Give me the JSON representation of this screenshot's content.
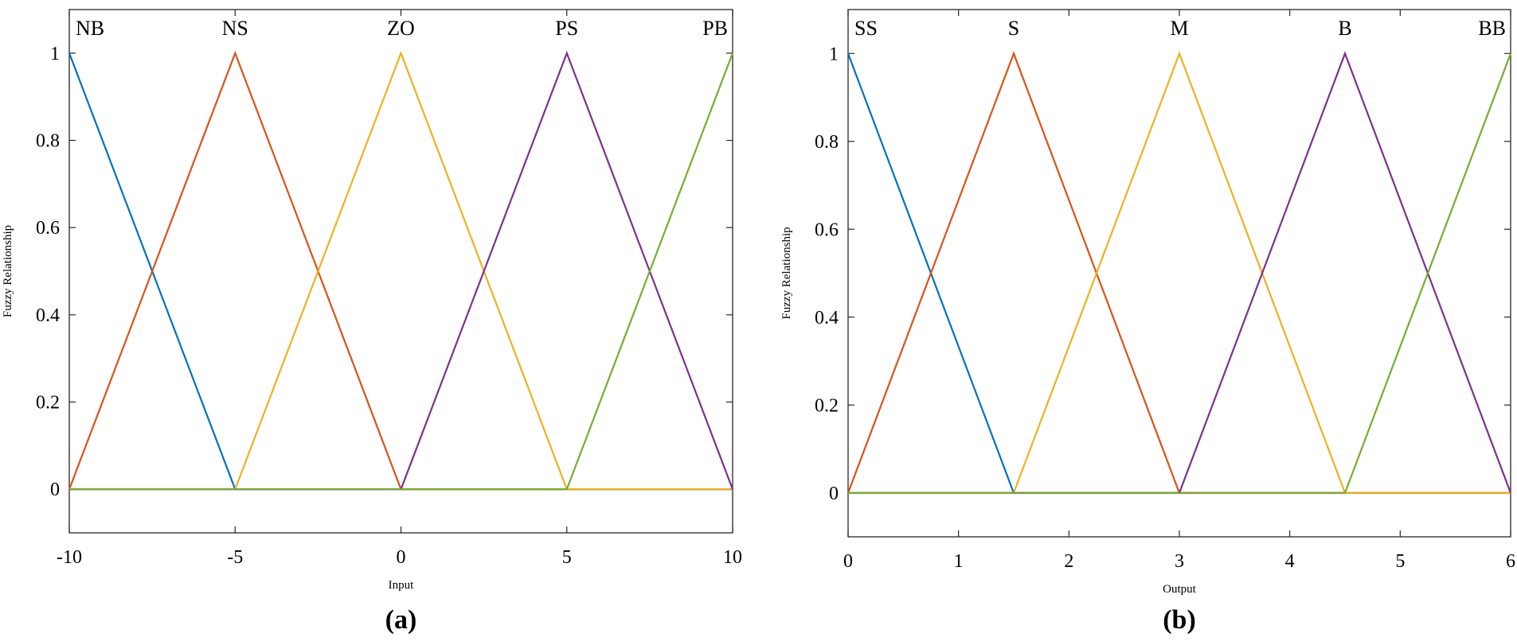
{
  "colors": [
    "#0072BD",
    "#D95319",
    "#EDB120",
    "#7E2F8E",
    "#77AC30"
  ],
  "chart_data": [
    {
      "type": "line",
      "panel_label": "(a)",
      "xlabel": "Input",
      "ylabel": "Fuzzy Relationship",
      "xlim": [
        -10,
        10
      ],
      "ylim": [
        -0.1,
        1.1
      ],
      "xticks": [
        -10,
        -5,
        0,
        5,
        10
      ],
      "yticks": [
        0,
        0.2,
        0.4,
        0.6,
        0.8,
        1
      ],
      "xtick_labels": [
        "-10",
        "-5",
        "0",
        "5",
        "10"
      ],
      "ytick_labels": [
        "0",
        "0.2",
        "0.4",
        "0.6",
        "0.8",
        "1"
      ],
      "grid": false,
      "series": [
        {
          "name": "NB",
          "x": [
            -10,
            -5,
            10
          ],
          "y": [
            1,
            0,
            0
          ]
        },
        {
          "name": "NS",
          "x": [
            -10,
            -5,
            0,
            10
          ],
          "y": [
            0,
            1,
            0,
            0
          ]
        },
        {
          "name": "ZO",
          "x": [
            -10,
            -5,
            0,
            5,
            10
          ],
          "y": [
            0,
            0,
            1,
            0,
            0
          ]
        },
        {
          "name": "PS",
          "x": [
            -10,
            0,
            5,
            10
          ],
          "y": [
            0,
            0,
            1,
            0
          ]
        },
        {
          "name": "PB",
          "x": [
            -10,
            5,
            10
          ],
          "y": [
            0,
            0,
            1
          ]
        }
      ]
    },
    {
      "type": "line",
      "panel_label": "(b)",
      "xlabel": "Output",
      "ylabel": "Fuzzy Relationship",
      "xlim": [
        0,
        6
      ],
      "ylim": [
        -0.1,
        1.1
      ],
      "xticks": [
        0,
        1,
        2,
        3,
        4,
        5,
        6
      ],
      "yticks": [
        0,
        0.2,
        0.4,
        0.6,
        0.8,
        1
      ],
      "xtick_labels": [
        "0",
        "1",
        "2",
        "3",
        "4",
        "5",
        "6"
      ],
      "ytick_labels": [
        "0",
        "0.2",
        "0.4",
        "0.6",
        "0.8",
        "1"
      ],
      "grid": false,
      "series": [
        {
          "name": "SS",
          "x": [
            0,
            1.5,
            6
          ],
          "y": [
            1,
            0,
            0
          ]
        },
        {
          "name": "S",
          "x": [
            0,
            1.5,
            3,
            6
          ],
          "y": [
            0,
            1,
            0,
            0
          ]
        },
        {
          "name": "M",
          "x": [
            0,
            1.5,
            3,
            4.5,
            6
          ],
          "y": [
            0,
            0,
            1,
            0,
            0
          ]
        },
        {
          "name": "B",
          "x": [
            0,
            3,
            4.5,
            6
          ],
          "y": [
            0,
            0,
            1,
            0
          ]
        },
        {
          "name": "BB",
          "x": [
            0,
            4.5,
            6
          ],
          "y": [
            0,
            0,
            1
          ]
        }
      ]
    }
  ]
}
